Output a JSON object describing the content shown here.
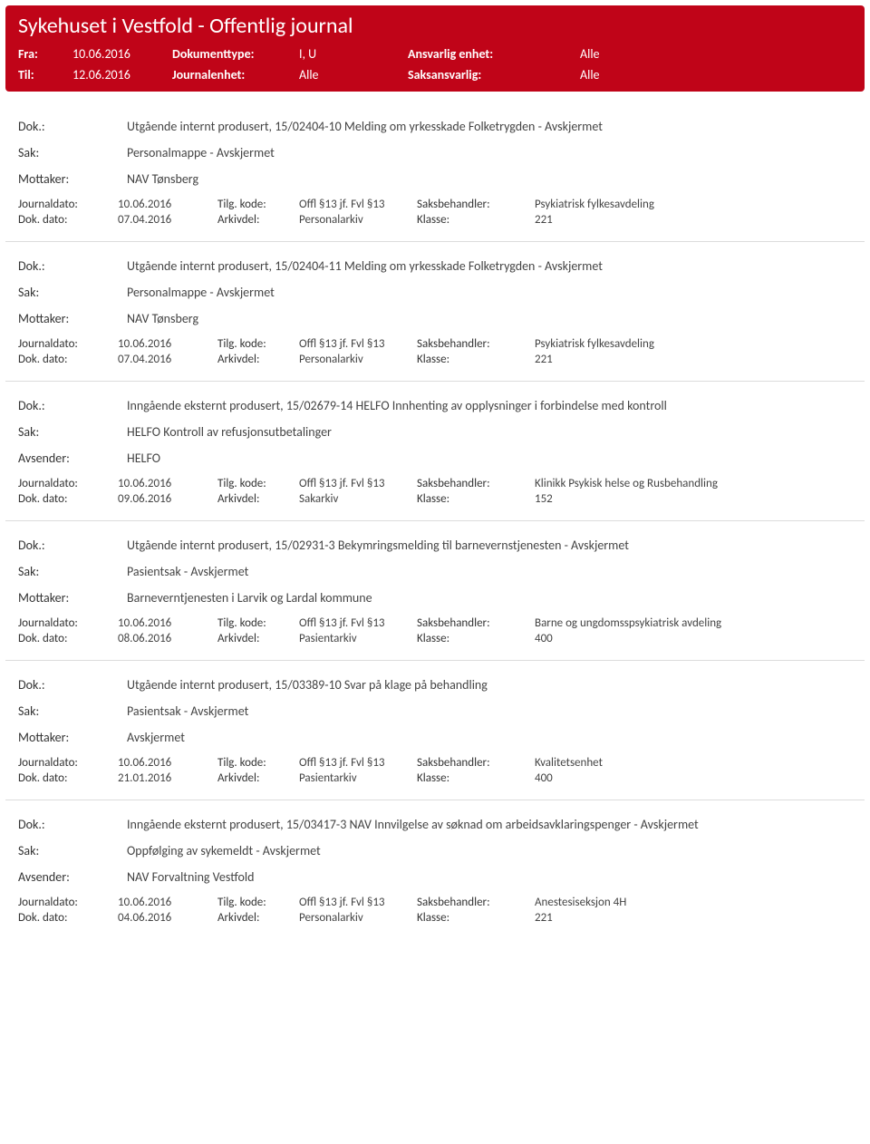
{
  "header": {
    "title": "Sykehuset i Vestfold - Offentlig journal",
    "fra_label": "Fra:",
    "fra_value": "10.06.2016",
    "til_label": "Til:",
    "til_value": "12.06.2016",
    "doktype_label": "Dokumenttype:",
    "doktype_value": "I, U",
    "journalenhet_label": "Journalenhet:",
    "journalenhet_value": "Alle",
    "ansvarlig_label": "Ansvarlig enhet:",
    "ansvarlig_value": "Alle",
    "saksansvarlig_label": "Saksansvarlig:",
    "saksansvarlig_value": "Alle"
  },
  "labels": {
    "dok": "Dok.:",
    "sak": "Sak:",
    "mottaker": "Mottaker:",
    "avsender": "Avsender:",
    "journaldato": "Journaldato:",
    "dokdato": "Dok. dato:",
    "tilgkode": "Tilg. kode:",
    "arkivdel": "Arkivdel:",
    "offl": "Offl §13 jf. Fvl §13",
    "saksbehandler": "Saksbehandler:",
    "klasse": "Klasse:"
  },
  "entries": [
    {
      "dok": "Utgående internt produsert, 15/02404-10 Melding om yrkesskade Folketrygden - Avskjermet",
      "sak": "Personalmappe - Avskjermet",
      "party_label": "Mottaker:",
      "party_value": "NAV Tønsberg",
      "journaldato": "10.06.2016",
      "dokdato": "07.04.2016",
      "arkivdel": "Personalarkiv",
      "saksbehandler": "Psykiatrisk fylkesavdeling",
      "klasse": "221"
    },
    {
      "dok": "Utgående internt produsert, 15/02404-11 Melding om yrkesskade Folketrygden - Avskjermet",
      "sak": "Personalmappe - Avskjermet",
      "party_label": "Mottaker:",
      "party_value": "NAV Tønsberg",
      "journaldato": "10.06.2016",
      "dokdato": "07.04.2016",
      "arkivdel": "Personalarkiv",
      "saksbehandler": "Psykiatrisk fylkesavdeling",
      "klasse": "221"
    },
    {
      "dok": "Inngående eksternt produsert, 15/02679-14 HELFO Innhenting av opplysninger i forbindelse med kontroll",
      "sak": "HELFO Kontroll av refusjonsutbetalinger",
      "party_label": "Avsender:",
      "party_value": "HELFO",
      "journaldato": "10.06.2016",
      "dokdato": "09.06.2016",
      "arkivdel": "Sakarkiv",
      "saksbehandler": "Klinikk Psykisk helse og Rusbehandling",
      "klasse": "152"
    },
    {
      "dok": "Utgående internt produsert, 15/02931-3 Bekymringsmelding til barnevernstjenesten - Avskjermet",
      "sak": "Pasientsak - Avskjermet",
      "party_label": "Mottaker:",
      "party_value": "Barneverntjenesten i Larvik og Lardal kommune",
      "journaldato": "10.06.2016",
      "dokdato": "08.06.2016",
      "arkivdel": "Pasientarkiv",
      "saksbehandler": "Barne og ungdomsspsykiatrisk avdeling",
      "klasse": "400"
    },
    {
      "dok": "Utgående internt produsert, 15/03389-10 Svar på klage på behandling",
      "sak": "Pasientsak - Avskjermet",
      "party_label": "Mottaker:",
      "party_value": "Avskjermet",
      "journaldato": "10.06.2016",
      "dokdato": "21.01.2016",
      "arkivdel": "Pasientarkiv",
      "saksbehandler": "Kvalitetsenhet",
      "klasse": "400"
    },
    {
      "dok": "Inngående eksternt produsert, 15/03417-3 NAV Innvilgelse av søknad om arbeidsavklaringspenger - Avskjermet",
      "sak": "Oppfølging av sykemeldt - Avskjermet",
      "party_label": "Avsender:",
      "party_value": "NAV Forvaltning Vestfold",
      "journaldato": "10.06.2016",
      "dokdato": "04.06.2016",
      "arkivdel": "Personalarkiv",
      "saksbehandler": "Anestesiseksjon 4H",
      "klasse": "221"
    }
  ]
}
